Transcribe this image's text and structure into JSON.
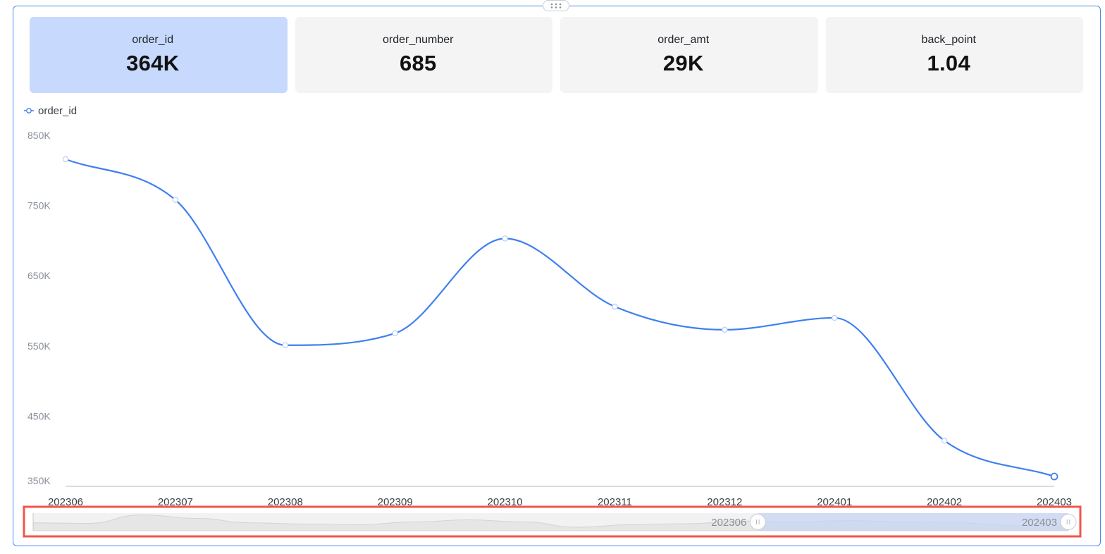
{
  "kpis": [
    {
      "label": "order_id",
      "value": "364K",
      "active": true
    },
    {
      "label": "order_number",
      "value": "685",
      "active": false
    },
    {
      "label": "order_amt",
      "value": "29K",
      "active": false
    },
    {
      "label": "back_point",
      "value": "1.04",
      "active": false
    }
  ],
  "colors": {
    "accent": "#4d87f0",
    "line": "#3f7ff0",
    "kpi_active_bg": "#c7d9fc",
    "kpi_bg": "#f4f4f4",
    "highlight_border": "#f0564a"
  },
  "chart_data": {
    "type": "line",
    "smooth": true,
    "legend_position": "top-left",
    "categories": [
      "202306",
      "202307",
      "202308",
      "202309",
      "202310",
      "202311",
      "202312",
      "202401",
      "202402",
      "202403"
    ],
    "series": [
      {
        "name": "order_id",
        "values": [
          816000,
          758000,
          551000,
          568000,
          703000,
          606000,
          573000,
          590000,
          415000,
          364000
        ]
      }
    ],
    "y_ticks": [
      "850K",
      "750K",
      "650K",
      "550K",
      "450K",
      "350K"
    ],
    "y_tick_values": [
      850000,
      750000,
      650000,
      550000,
      450000,
      350000
    ],
    "ylim": [
      358000,
      850000
    ],
    "grid": false
  },
  "data_zoom": {
    "start_label": "202306",
    "end_label": "202403",
    "start_value": "202306",
    "end_value": "202403",
    "selected_range_fraction": [
      0.7,
      1.0
    ],
    "overview_values": [
      0.45,
      0.42,
      0.9,
      0.7,
      0.45,
      0.38,
      0.35,
      0.5,
      0.62,
      0.5,
      0.2,
      0.35,
      0.4,
      0.55,
      0.5,
      0.58,
      0.5,
      0.45,
      0.3,
      0.25
    ]
  }
}
